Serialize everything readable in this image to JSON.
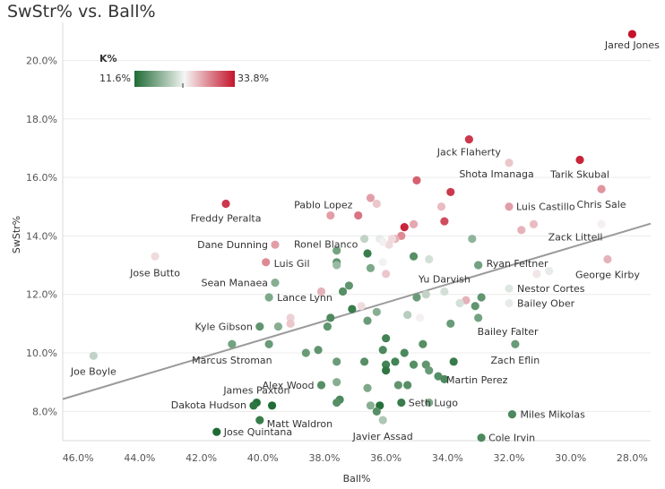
{
  "chart_data": {
    "type": "scatter",
    "title": "SwStr% vs. Ball%",
    "xlabel": "Ball%",
    "ylabel": "SwStr%",
    "x_reversed": true,
    "xlim": [
      46.5,
      27.4
    ],
    "ylim": [
      7.0,
      21.3
    ],
    "x_ticks": [
      46,
      44,
      42,
      40,
      38,
      36,
      34,
      32,
      30,
      28
    ],
    "y_ticks": [
      8,
      10,
      12,
      14,
      16,
      18,
      20
    ],
    "grid": "horizontal",
    "legend": {
      "title": "K%",
      "min_label": "11.6%",
      "max_label": "33.8%",
      "min": 11.6,
      "max": 33.8,
      "placement": "top-left"
    },
    "colors": {
      "low": "#1e6b34",
      "mid": "#f5f5f5",
      "high": "#c4142b"
    },
    "trend_line": {
      "x": [
        46.5,
        27.4
      ],
      "y": [
        8.42,
        14.42
      ]
    },
    "points": [
      {
        "x": 28.0,
        "y": 20.9,
        "k": 33.8,
        "label": "Jared Jones"
      },
      {
        "x": 33.3,
        "y": 17.3,
        "k": 32.0,
        "label": "Jack Flaherty"
      },
      {
        "x": 29.7,
        "y": 16.6,
        "k": 33.0,
        "label": "Tarik Skubal"
      },
      {
        "x": 32.0,
        "y": 16.5,
        "k": 25.0,
        "label": "Shota Imanaga"
      },
      {
        "x": 29.0,
        "y": 15.6,
        "k": 27.5,
        "label": "Chris Sale"
      },
      {
        "x": 41.2,
        "y": 15.1,
        "k": 32.0,
        "label": "Freddy Peralta"
      },
      {
        "x": 32.0,
        "y": 15.0,
        "k": 27.0,
        "label": "Luis Castillo"
      },
      {
        "x": 37.8,
        "y": 14.7,
        "k": 27.0,
        "label": "Pablo Lopez"
      },
      {
        "x": 29.0,
        "y": 14.4,
        "k": 23.0,
        "label": "Zack Littell"
      },
      {
        "x": 39.6,
        "y": 13.7,
        "k": 27.0,
        "label": "Dane Dunning"
      },
      {
        "x": 37.6,
        "y": 13.5,
        "k": 16.0,
        "label": "Ronel Blanco"
      },
      {
        "x": 43.5,
        "y": 13.3,
        "k": 24.0,
        "label": "Jose Butto"
      },
      {
        "x": 39.9,
        "y": 13.1,
        "k": 28.0,
        "label": "Luis Gil"
      },
      {
        "x": 28.8,
        "y": 13.2,
        "k": 26.0,
        "label": "George Kirby"
      },
      {
        "x": 33.0,
        "y": 13.0,
        "k": 16.5,
        "label": "Ryan Feltner"
      },
      {
        "x": 39.6,
        "y": 12.4,
        "k": 17.0,
        "label": "Sean Manaea"
      },
      {
        "x": 34.1,
        "y": 12.1,
        "k": 21.0,
        "label": "Yu Darvish"
      },
      {
        "x": 32.0,
        "y": 12.2,
        "k": 21.5,
        "label": "Nestor Cortes"
      },
      {
        "x": 39.8,
        "y": 11.9,
        "k": 16.5,
        "label": "Lance Lynn"
      },
      {
        "x": 32.0,
        "y": 11.7,
        "k": 22.0,
        "label": "Bailey Ober"
      },
      {
        "x": 33.0,
        "y": 11.2,
        "k": 16.0,
        "label": "Bailey Falter"
      },
      {
        "x": 40.1,
        "y": 10.9,
        "k": 15.0,
        "label": "Kyle Gibson"
      },
      {
        "x": 41.0,
        "y": 10.3,
        "k": 16.0,
        "label": "Marcus Stroman"
      },
      {
        "x": 31.8,
        "y": 10.3,
        "k": 15.5,
        "label": "Zach Eflin"
      },
      {
        "x": 45.5,
        "y": 9.9,
        "k": 20.0,
        "label": "Joe Boyle"
      },
      {
        "x": 34.3,
        "y": 9.2,
        "k": 14.5,
        "label": "Martin Perez"
      },
      {
        "x": 38.1,
        "y": 8.9,
        "k": 14.5,
        "label": "Alex Wood"
      },
      {
        "x": 40.2,
        "y": 8.3,
        "k": 12.0,
        "label": "James Paxton"
      },
      {
        "x": 35.5,
        "y": 8.3,
        "k": 13.0,
        "label": "Seth Lugo"
      },
      {
        "x": 40.3,
        "y": 8.2,
        "k": 12.5,
        "label": "Dakota Hudson"
      },
      {
        "x": 31.9,
        "y": 7.9,
        "k": 14.0,
        "label": "Miles Mikolas"
      },
      {
        "x": 40.1,
        "y": 7.7,
        "k": 13.0,
        "label": "Matt Waldron"
      },
      {
        "x": 36.1,
        "y": 7.7,
        "k": 19.0,
        "label": "Javier Assad"
      },
      {
        "x": 41.5,
        "y": 7.3,
        "k": 11.6,
        "label": "Jose Quintana"
      },
      {
        "x": 32.9,
        "y": 7.1,
        "k": 14.0,
        "label": "Cole Irvin"
      },
      {
        "x": 35.0,
        "y": 15.9,
        "k": 30.0
      },
      {
        "x": 33.9,
        "y": 15.5,
        "k": 32.0
      },
      {
        "x": 36.5,
        "y": 15.3,
        "k": 27.0
      },
      {
        "x": 36.3,
        "y": 15.1,
        "k": 25.0
      },
      {
        "x": 34.2,
        "y": 15.0,
        "k": 25.5
      },
      {
        "x": 36.9,
        "y": 14.7,
        "k": 29.0
      },
      {
        "x": 34.1,
        "y": 14.5,
        "k": 31.0
      },
      {
        "x": 35.1,
        "y": 14.4,
        "k": 26.5
      },
      {
        "x": 35.4,
        "y": 14.3,
        "k": 33.0
      },
      {
        "x": 31.2,
        "y": 14.4,
        "k": 25.5
      },
      {
        "x": 31.6,
        "y": 14.2,
        "k": 26.0
      },
      {
        "x": 35.5,
        "y": 14.0,
        "k": 28.0
      },
      {
        "x": 35.7,
        "y": 13.9,
        "k": 26.0
      },
      {
        "x": 36.2,
        "y": 13.9,
        "k": 22.0
      },
      {
        "x": 35.8,
        "y": 13.9,
        "k": 24.0
      },
      {
        "x": 36.7,
        "y": 13.9,
        "k": 20.0
      },
      {
        "x": 35.9,
        "y": 13.7,
        "k": 24.0
      },
      {
        "x": 36.1,
        "y": 13.8,
        "k": 23.0
      },
      {
        "x": 34.6,
        "y": 13.2,
        "k": 21.0
      },
      {
        "x": 35.1,
        "y": 13.3,
        "k": 14.5
      },
      {
        "x": 36.6,
        "y": 13.4,
        "k": 13.0
      },
      {
        "x": 37.6,
        "y": 13.1,
        "k": 15.0
      },
      {
        "x": 36.1,
        "y": 13.1,
        "k": 22.5
      },
      {
        "x": 36.5,
        "y": 12.9,
        "k": 16.5
      },
      {
        "x": 37.6,
        "y": 13.0,
        "k": 18.0
      },
      {
        "x": 33.2,
        "y": 13.9,
        "k": 17.5
      },
      {
        "x": 33.0,
        "y": 13.0,
        "k": 16.0
      },
      {
        "x": 36.0,
        "y": 12.7,
        "k": 25.0
      },
      {
        "x": 30.7,
        "y": 12.8,
        "k": 22.0
      },
      {
        "x": 31.1,
        "y": 12.7,
        "k": 23.5
      },
      {
        "x": 37.2,
        "y": 12.3,
        "k": 15.0
      },
      {
        "x": 37.4,
        "y": 12.1,
        "k": 14.5
      },
      {
        "x": 38.1,
        "y": 12.1,
        "k": 26.0
      },
      {
        "x": 35.0,
        "y": 11.9,
        "k": 15.5
      },
      {
        "x": 34.7,
        "y": 12.0,
        "k": 20.0
      },
      {
        "x": 32.9,
        "y": 11.9,
        "k": 15.0
      },
      {
        "x": 33.4,
        "y": 11.8,
        "k": 26.0
      },
      {
        "x": 33.1,
        "y": 11.6,
        "k": 15.0
      },
      {
        "x": 33.6,
        "y": 11.7,
        "k": 21.0
      },
      {
        "x": 36.8,
        "y": 11.6,
        "k": 24.0
      },
      {
        "x": 37.1,
        "y": 11.5,
        "k": 13.0
      },
      {
        "x": 36.3,
        "y": 11.4,
        "k": 17.0
      },
      {
        "x": 35.3,
        "y": 11.3,
        "k": 19.5
      },
      {
        "x": 34.9,
        "y": 11.2,
        "k": 23.0
      },
      {
        "x": 36.6,
        "y": 11.1,
        "k": 15.5
      },
      {
        "x": 37.8,
        "y": 11.2,
        "k": 14.0
      },
      {
        "x": 39.1,
        "y": 11.2,
        "k": 24.5
      },
      {
        "x": 39.1,
        "y": 11.0,
        "k": 25.0
      },
      {
        "x": 39.5,
        "y": 10.9,
        "k": 17.0
      },
      {
        "x": 37.9,
        "y": 10.9,
        "k": 15.0
      },
      {
        "x": 33.9,
        "y": 11.0,
        "k": 15.5
      },
      {
        "x": 39.8,
        "y": 10.3,
        "k": 15.5
      },
      {
        "x": 36.0,
        "y": 10.5,
        "k": 13.5
      },
      {
        "x": 34.8,
        "y": 10.3,
        "k": 14.5
      },
      {
        "x": 36.1,
        "y": 10.1,
        "k": 14.0
      },
      {
        "x": 35.4,
        "y": 10.0,
        "k": 14.0
      },
      {
        "x": 38.2,
        "y": 10.1,
        "k": 15.0
      },
      {
        "x": 38.6,
        "y": 10.0,
        "k": 15.5
      },
      {
        "x": 37.6,
        "y": 9.7,
        "k": 15.5
      },
      {
        "x": 36.7,
        "y": 9.7,
        "k": 14.5
      },
      {
        "x": 36.0,
        "y": 9.6,
        "k": 13.5
      },
      {
        "x": 35.7,
        "y": 9.7,
        "k": 13.5
      },
      {
        "x": 35.1,
        "y": 9.6,
        "k": 14.5
      },
      {
        "x": 34.7,
        "y": 9.6,
        "k": 15.0
      },
      {
        "x": 33.8,
        "y": 9.7,
        "k": 13.0
      },
      {
        "x": 36.0,
        "y": 9.4,
        "k": 12.5
      },
      {
        "x": 34.6,
        "y": 9.4,
        "k": 15.5
      },
      {
        "x": 34.1,
        "y": 9.1,
        "k": 14.0
      },
      {
        "x": 37.6,
        "y": 9.0,
        "k": 17.0
      },
      {
        "x": 35.6,
        "y": 8.9,
        "k": 15.0
      },
      {
        "x": 35.3,
        "y": 8.9,
        "k": 14.5
      },
      {
        "x": 36.6,
        "y": 8.8,
        "k": 16.5
      },
      {
        "x": 37.5,
        "y": 8.4,
        "k": 14.0
      },
      {
        "x": 37.6,
        "y": 8.3,
        "k": 14.5
      },
      {
        "x": 39.7,
        "y": 8.2,
        "k": 11.8
      },
      {
        "x": 36.5,
        "y": 8.2,
        "k": 17.0
      },
      {
        "x": 36.2,
        "y": 8.2,
        "k": 12.0
      },
      {
        "x": 36.3,
        "y": 8.0,
        "k": 14.5
      },
      {
        "x": 34.6,
        "y": 8.3,
        "k": 16.5
      }
    ]
  }
}
